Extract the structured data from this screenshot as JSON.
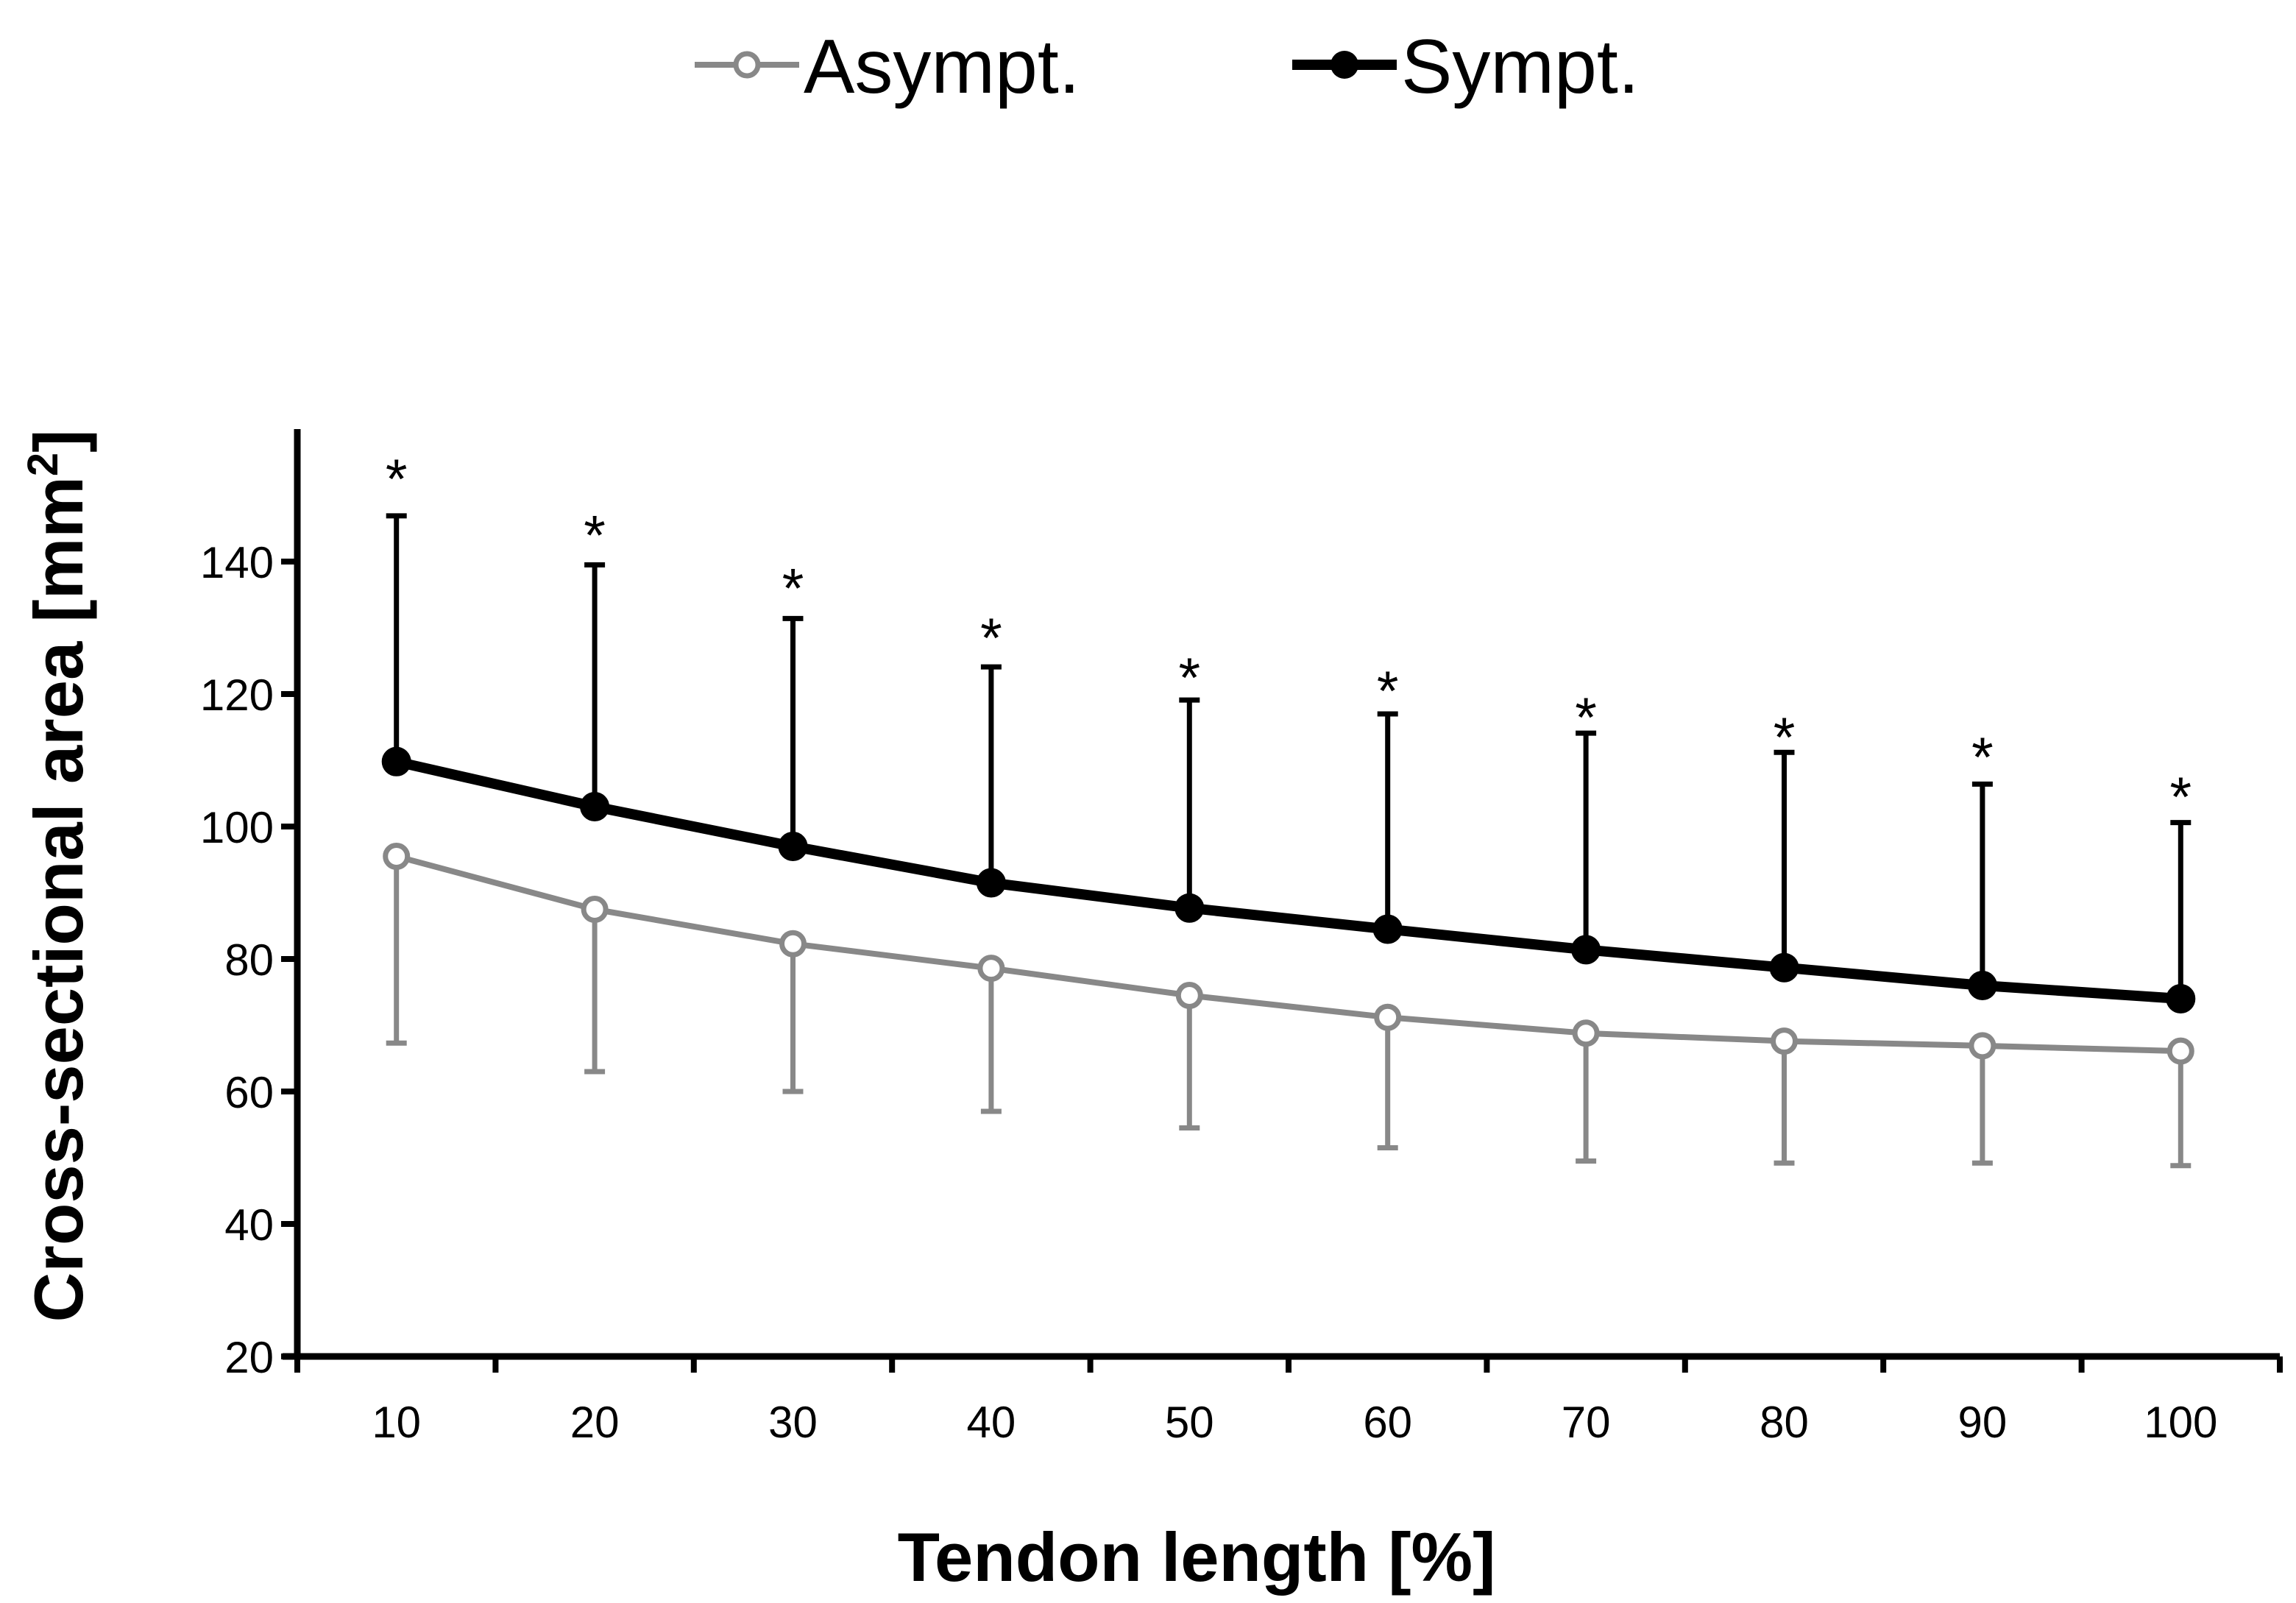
{
  "chart_data": {
    "type": "line",
    "title": "",
    "xlabel": "Tendon length [%]",
    "ylabel": "Cross-sectional area [mm²]",
    "ylabel_main": "Cross-sectional area [mm",
    "ylabel_sup": "2",
    "ylabel_end": "]",
    "x": [
      10,
      20,
      30,
      40,
      50,
      60,
      70,
      80,
      90,
      100
    ],
    "x_tick_labels": [
      "10",
      "20",
      "30",
      "40",
      "50",
      "60",
      "70",
      "80",
      "90",
      "100"
    ],
    "ylim": [
      20,
      160
    ],
    "y_ticks": [
      20,
      40,
      60,
      80,
      100,
      120,
      140
    ],
    "y_tick_labels": [
      "20",
      "40",
      "60",
      "80",
      "100",
      "120",
      "140"
    ],
    "grid": false,
    "legend_position": "top",
    "series": [
      {
        "name": "Asympt.",
        "color": "#888888",
        "marker": "open-circle",
        "values": [
          95.5,
          87.5,
          82.3,
          78.6,
          74.5,
          71.2,
          68.8,
          67.6,
          66.9,
          66.1
        ],
        "error_lower": [
          67.3,
          63.0,
          60.0,
          57.0,
          54.5,
          51.5,
          49.5,
          49.2,
          49.2,
          48.8
        ]
      },
      {
        "name": "Sympt.",
        "color": "#000000",
        "marker": "filled-circle",
        "values": [
          109.8,
          103.0,
          97.0,
          91.5,
          87.7,
          84.5,
          81.4,
          78.7,
          76.0,
          74.0
        ],
        "error_upper": [
          146.9,
          139.5,
          131.4,
          124.1,
          119.1,
          117.0,
          114.1,
          111.2,
          106.4,
          100.6
        ]
      }
    ],
    "annotations": {
      "marker": "*",
      "x": [
        10,
        20,
        30,
        40,
        50,
        60,
        70,
        80,
        90,
        100
      ],
      "y": [
        154.0,
        145.5,
        137.5,
        130.0,
        124.0,
        122.0,
        118.0,
        115.0,
        112.0,
        106.0
      ]
    }
  }
}
